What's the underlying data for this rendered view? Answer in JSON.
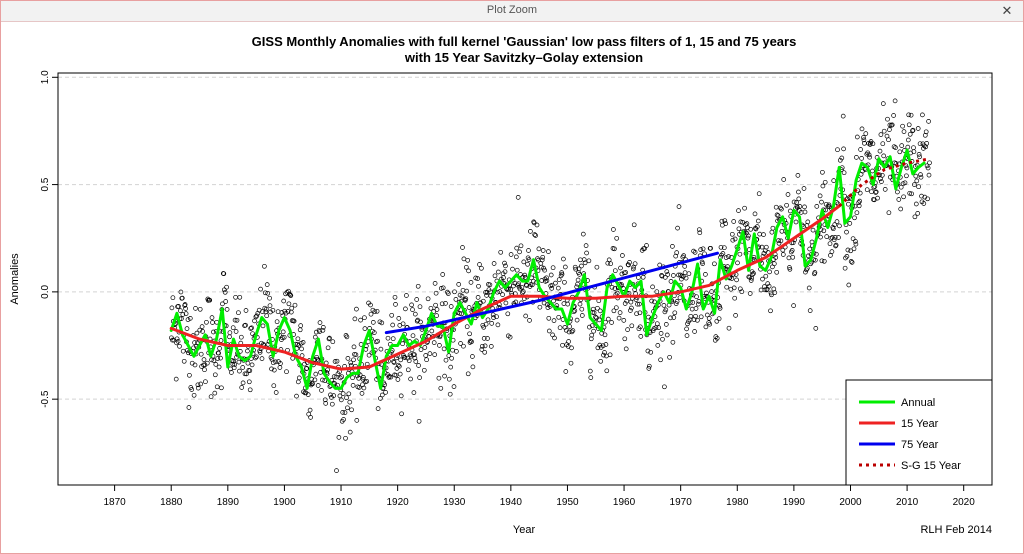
{
  "window": {
    "title": "Plot Zoom",
    "close_label": "✕"
  },
  "colors": {
    "annual": "#00ee00",
    "y15": "#ee2222",
    "y75": "#0000ee",
    "sg15": "#bb0000",
    "points": "#000000",
    "grid": "#d3d3d3"
  },
  "chart_data": {
    "type": "scatter",
    "title": "GISS Monthly Anomalies with full kernel 'Gaussian' low pass filters of 1, 15 and 75 years",
    "subtitle": "with 15 Year Savitzky–Golay extension",
    "xlabel": "Year",
    "ylabel": "Anomalies",
    "xlim": [
      1860,
      2025
    ],
    "ylim": [
      -0.9,
      1.02
    ],
    "x_ticks": [
      1870,
      1880,
      1890,
      1900,
      1910,
      1920,
      1930,
      1940,
      1950,
      1960,
      1970,
      1980,
      1990,
      2000,
      2010,
      2020
    ],
    "y_ticks": [
      -0.5,
      0.0,
      0.5,
      1.0
    ],
    "y_tick_labels": [
      "-0.5",
      "0.0",
      "0.5",
      "1.0"
    ],
    "grid": "horizontal dashed",
    "legend_position": "bottom-right",
    "annotation": "RLH Feb 2014",
    "series": [
      {
        "name": "Annual",
        "style": "line",
        "x": [
          1880,
          1881,
          1882,
          1883,
          1884,
          1885,
          1886,
          1887,
          1888,
          1889,
          1890,
          1891,
          1892,
          1893,
          1894,
          1895,
          1896,
          1897,
          1898,
          1899,
          1900,
          1901,
          1902,
          1903,
          1904,
          1905,
          1906,
          1907,
          1908,
          1909,
          1910,
          1911,
          1912,
          1913,
          1914,
          1915,
          1916,
          1917,
          1918,
          1919,
          1920,
          1921,
          1922,
          1923,
          1924,
          1925,
          1926,
          1927,
          1928,
          1929,
          1930,
          1931,
          1932,
          1933,
          1934,
          1935,
          1936,
          1937,
          1938,
          1939,
          1940,
          1941,
          1942,
          1943,
          1944,
          1945,
          1946,
          1947,
          1948,
          1949,
          1950,
          1951,
          1952,
          1953,
          1954,
          1955,
          1956,
          1957,
          1958,
          1959,
          1960,
          1961,
          1962,
          1963,
          1964,
          1965,
          1966,
          1967,
          1968,
          1969,
          1970,
          1971,
          1972,
          1973,
          1974,
          1975,
          1976,
          1977,
          1978,
          1979,
          1980,
          1981,
          1982,
          1983,
          1984,
          1985,
          1986,
          1987,
          1988,
          1989,
          1990,
          1991,
          1992,
          1993,
          1994,
          1995,
          1996,
          1997,
          1998,
          1999,
          2000,
          2001,
          2002,
          2003,
          2004,
          2005,
          2006,
          2007,
          2008,
          2009,
          2010,
          2011,
          2012,
          2013
        ],
        "y": [
          -0.18,
          -0.1,
          -0.2,
          -0.25,
          -0.3,
          -0.25,
          -0.2,
          -0.3,
          -0.22,
          -0.08,
          -0.35,
          -0.22,
          -0.3,
          -0.32,
          -0.3,
          -0.2,
          -0.12,
          -0.15,
          -0.3,
          -0.18,
          -0.12,
          -0.18,
          -0.3,
          -0.35,
          -0.45,
          -0.3,
          -0.22,
          -0.38,
          -0.42,
          -0.45,
          -0.45,
          -0.4,
          -0.38,
          -0.38,
          -0.25,
          -0.18,
          -0.32,
          -0.45,
          -0.3,
          -0.25,
          -0.25,
          -0.2,
          -0.25,
          -0.23,
          -0.25,
          -0.18,
          -0.1,
          -0.16,
          -0.16,
          -0.28,
          -0.1,
          -0.05,
          -0.1,
          -0.15,
          -0.05,
          -0.12,
          -0.08,
          0.0,
          0.05,
          0.02,
          0.05,
          0.08,
          0.05,
          0.05,
          0.15,
          0.02,
          -0.02,
          -0.05,
          -0.08,
          -0.08,
          -0.15,
          -0.05,
          0.0,
          0.08,
          -0.12,
          -0.15,
          -0.18,
          0.02,
          0.08,
          0.03,
          -0.02,
          0.05,
          0.02,
          0.05,
          -0.2,
          -0.12,
          -0.05,
          0.0,
          -0.05,
          0.05,
          0.02,
          -0.08,
          0.0,
          0.13,
          -0.08,
          -0.02,
          -0.1,
          0.15,
          0.06,
          0.12,
          0.2,
          0.28,
          0.1,
          0.27,
          0.12,
          0.1,
          0.16,
          0.3,
          0.35,
          0.25,
          0.38,
          0.35,
          0.12,
          0.15,
          0.25,
          0.38,
          0.3,
          0.4,
          0.58,
          0.32,
          0.35,
          0.52,
          0.6,
          0.58,
          0.5,
          0.62,
          0.58,
          0.63,
          0.48,
          0.58,
          0.66,
          0.55,
          0.58,
          0.6
        ]
      },
      {
        "name": "15 Year",
        "style": "line",
        "x": [
          1880,
          1885,
          1890,
          1895,
          1900,
          1905,
          1910,
          1915,
          1920,
          1925,
          1930,
          1935,
          1940,
          1945,
          1950,
          1955,
          1960,
          1965,
          1970,
          1975,
          1980,
          1985,
          1990,
          1995,
          1998
        ],
        "y": [
          -0.17,
          -0.22,
          -0.25,
          -0.25,
          -0.28,
          -0.33,
          -0.36,
          -0.35,
          -0.29,
          -0.23,
          -0.15,
          -0.08,
          -0.02,
          -0.02,
          -0.03,
          -0.03,
          -0.02,
          -0.02,
          0.0,
          0.03,
          0.1,
          0.16,
          0.25,
          0.34,
          0.4
        ]
      },
      {
        "name": "75 Year",
        "style": "line",
        "x": [
          1918,
          1925,
          1935,
          1945,
          1955,
          1965,
          1976.5
        ],
        "y": [
          -0.19,
          -0.16,
          -0.1,
          -0.04,
          0.03,
          0.1,
          0.18
        ]
      },
      {
        "name": "S-G 15 Year",
        "style": "dashed",
        "x": [
          1998,
          2002,
          2006,
          2010,
          2014
        ],
        "y": [
          0.4,
          0.5,
          0.57,
          0.6,
          0.62
        ]
      }
    ]
  }
}
